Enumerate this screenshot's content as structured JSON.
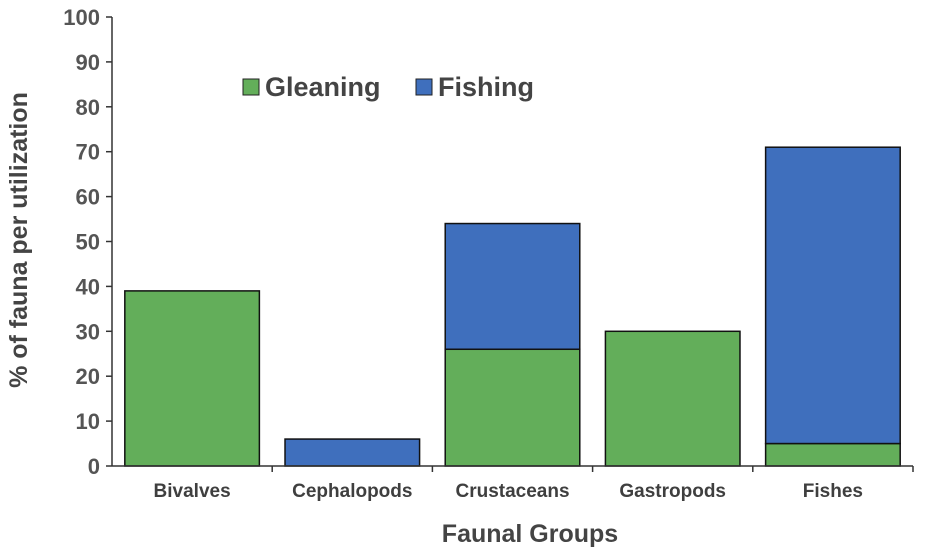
{
  "chart_data": {
    "type": "bar",
    "stacked": true,
    "categories": [
      "Bivalves",
      "Cephalopods",
      "Crustaceans",
      "Gastropods",
      "Fishes"
    ],
    "series": [
      {
        "name": "Gleaning",
        "values": [
          39,
          0,
          26,
          30,
          5
        ]
      },
      {
        "name": "Fishing",
        "values": [
          0,
          6,
          28,
          0,
          66
        ]
      }
    ],
    "xlabel": "Faunal Groups",
    "ylabel": "% of fauna per utilization",
    "ylim": [
      0,
      100
    ],
    "yticks": [
      0,
      10,
      20,
      30,
      40,
      50,
      60,
      70,
      80,
      90,
      100
    ],
    "grid": false,
    "legend_position": "top-left",
    "colors": {
      "Gleaning": "#63ae5a",
      "Fishing": "#3f6fbd"
    }
  }
}
